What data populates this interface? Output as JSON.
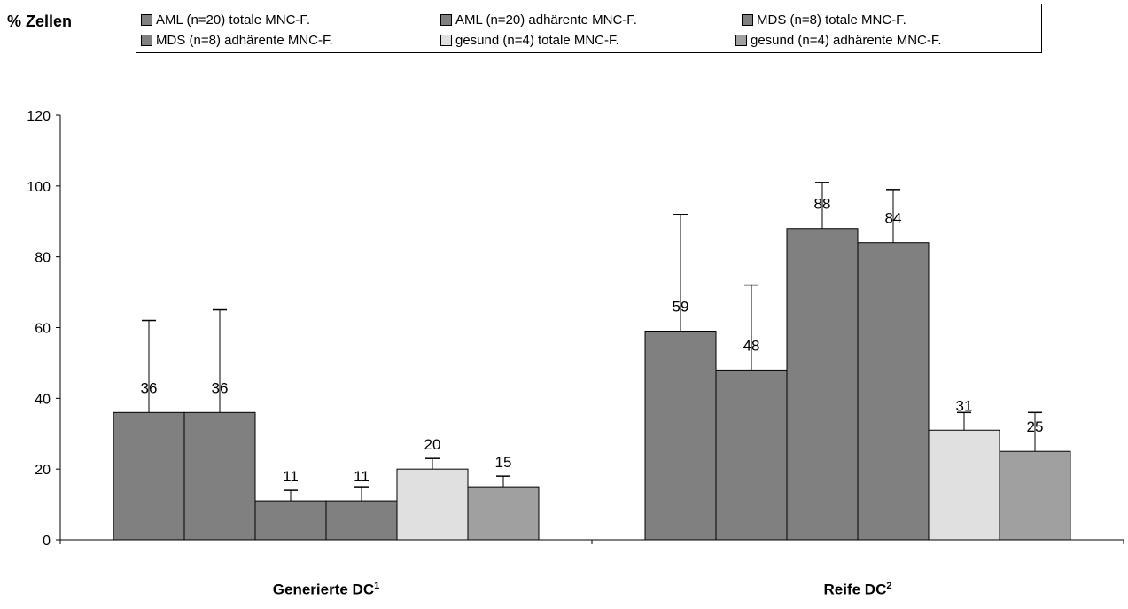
{
  "chart_data": {
    "type": "bar",
    "ylabel": "% Zellen",
    "ylim": [
      0,
      120
    ],
    "yticks": [
      0,
      20,
      40,
      60,
      80,
      100,
      120
    ],
    "categories": [
      {
        "label": "Generierte DC",
        "sup": "1"
      },
      {
        "label": "Reife DC",
        "sup": "2"
      }
    ],
    "series": [
      {
        "name": "AML (n=20) totale MNC-F.",
        "color": "#808080",
        "values": [
          36,
          59
        ],
        "errors": [
          26,
          33
        ]
      },
      {
        "name": "AML (n=20) adhärente MNC-F.",
        "color": "#808080",
        "values": [
          36,
          48
        ],
        "errors": [
          29,
          24
        ]
      },
      {
        "name": "MDS (n=8) totale MNC-F.",
        "color": "#808080",
        "values": [
          11,
          88
        ],
        "errors": [
          3,
          13
        ]
      },
      {
        "name": "MDS (n=8) adhärente MNC-F.",
        "color": "#808080",
        "values": [
          11,
          84
        ],
        "errors": [
          4,
          15
        ]
      },
      {
        "name": "gesund (n=4) totale MNC-F.",
        "color": "#e0e0e0",
        "values": [
          20,
          31
        ],
        "errors": [
          3,
          5
        ]
      },
      {
        "name": "gesund (n=4) adhärente MNC-F.",
        "color": "#a0a0a0",
        "values": [
          15,
          25
        ],
        "errors": [
          3,
          11
        ]
      }
    ],
    "grid": false,
    "legend_position": "top"
  }
}
